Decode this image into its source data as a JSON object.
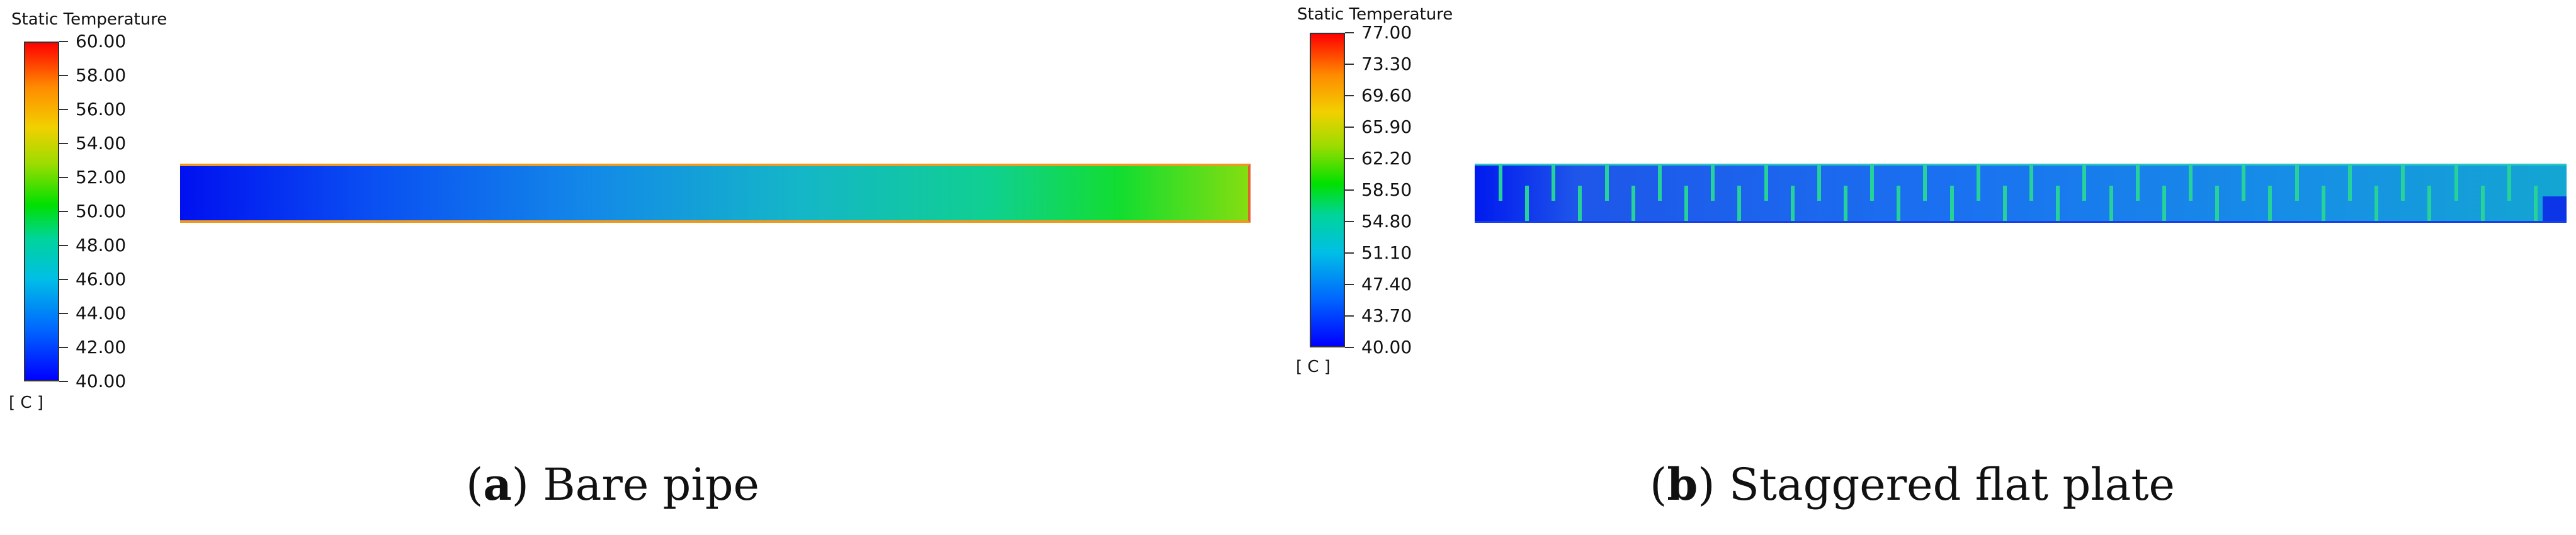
{
  "panel_a": {
    "legend_title": "Static Temperature",
    "ticks": [
      "60.00",
      "58.00",
      "56.00",
      "54.00",
      "52.00",
      "50.00",
      "48.00",
      "46.00",
      "44.00",
      "42.00",
      "40.00"
    ],
    "unit": "[ C ]",
    "caption_letter": "a",
    "caption_text": ") Bare pipe"
  },
  "panel_b": {
    "legend_title": "Static Temperature",
    "ticks": [
      "77.00",
      "73.30",
      "69.60",
      "65.90",
      "62.20",
      "58.50",
      "54.80",
      "51.10",
      "47.40",
      "43.70",
      "40.00"
    ],
    "unit": "[ C ]",
    "caption_letter": "b",
    "caption_text": ") Staggered flat plate"
  },
  "colors": {
    "colormap": [
      "#0000ff",
      "#00bfe6",
      "#00e000",
      "#f2d000",
      "#ff0000"
    ],
    "plate_fin": "#27d29a"
  }
}
